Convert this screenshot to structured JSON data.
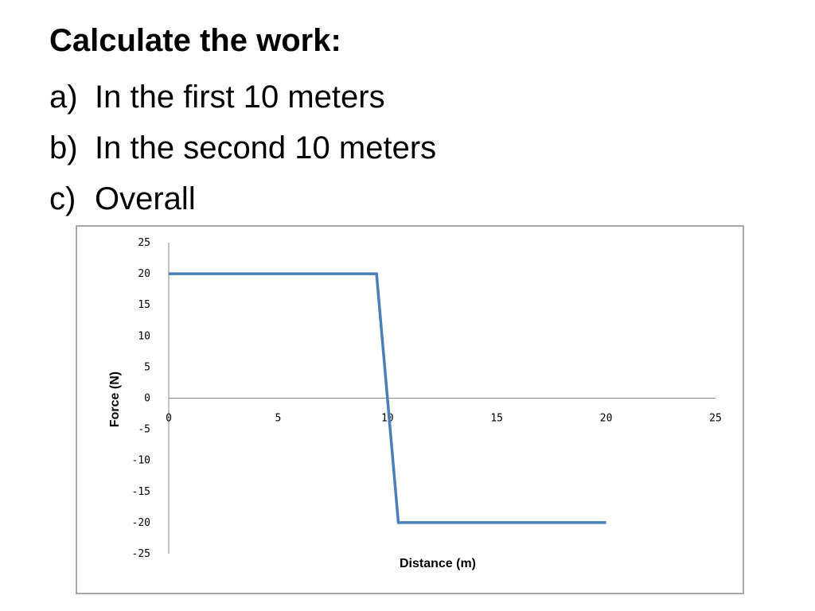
{
  "heading": "Calculate the work:",
  "questions": [
    {
      "marker": "a)",
      "text": "In the first 10 meters"
    },
    {
      "marker": "b)",
      "text": "In the second 10 meters"
    },
    {
      "marker": "c)",
      "text": "Overall"
    }
  ],
  "chart_data": {
    "type": "line",
    "title": "",
    "xlabel": "Distance (m)",
    "ylabel": "Force (N)",
    "xlim": [
      0,
      25
    ],
    "ylim": [
      -25,
      25
    ],
    "x_ticks": [
      0,
      5,
      10,
      15,
      20,
      25
    ],
    "y_ticks": [
      25,
      20,
      15,
      10,
      5,
      0,
      -5,
      -10,
      -15,
      -20,
      -25
    ],
    "grid": false,
    "colors": {
      "line": "#4a7ebb",
      "axis": "#868686"
    },
    "series": [
      {
        "x": [
          0,
          9.5,
          10.5,
          20
        ],
        "y": [
          20,
          20,
          -20,
          -20
        ]
      }
    ]
  }
}
